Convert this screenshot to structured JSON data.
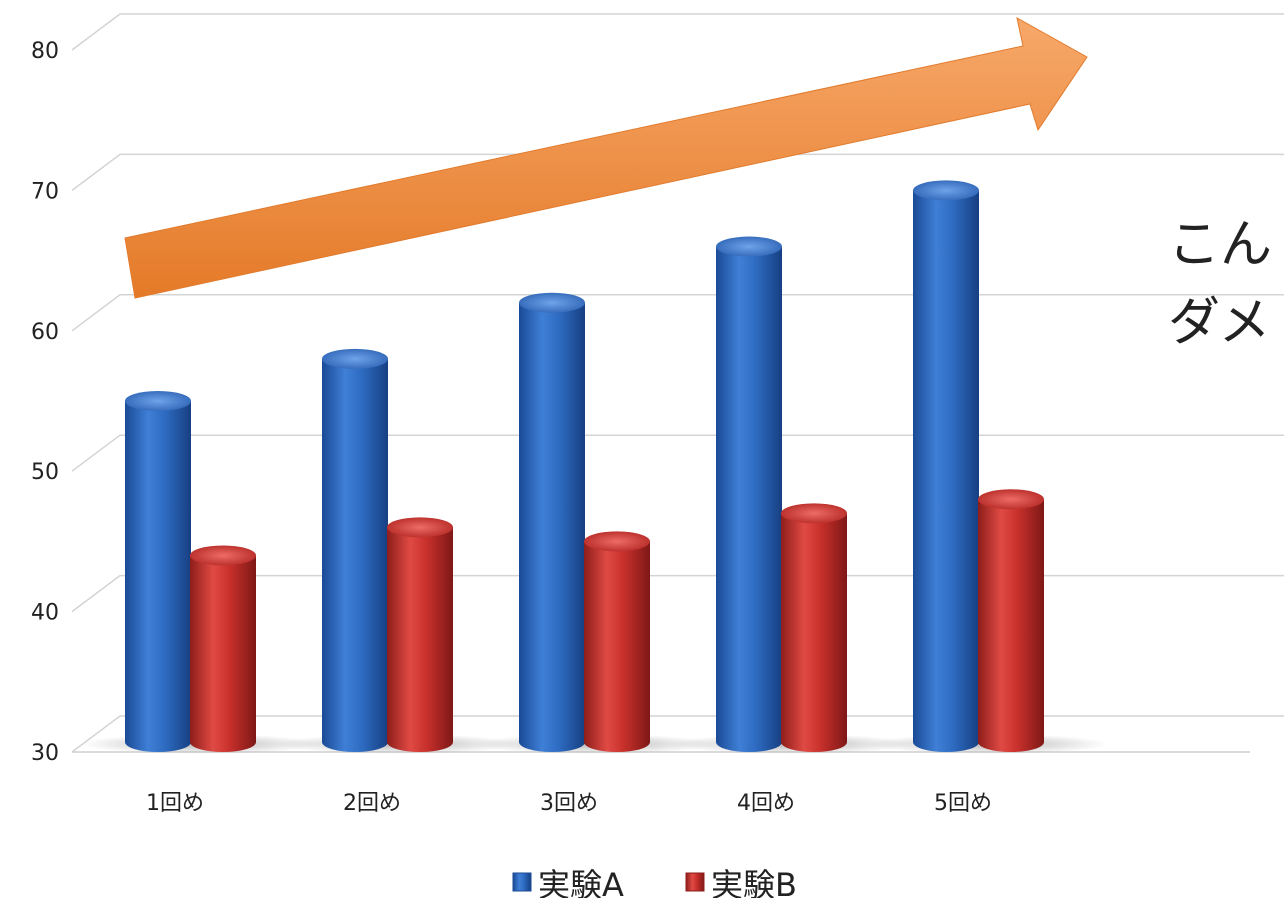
{
  "chart_data": {
    "type": "bar",
    "style": "3d-cylinder",
    "categories": [
      "1回め",
      "2回め",
      "3回め",
      "4回め",
      "5回め"
    ],
    "series": [
      {
        "name": "実験A",
        "color": "#2e6cc2",
        "values": [
          55,
          58,
          62,
          66,
          70
        ]
      },
      {
        "name": "実験B",
        "color": "#c8302c",
        "values": [
          44,
          46,
          45,
          47,
          48
        ]
      }
    ],
    "ylim": [
      30,
      80
    ],
    "yticks": [
      30,
      40,
      50,
      60,
      70,
      80
    ],
    "grid": true,
    "legend_position": "bottom",
    "arrow_color": "#f08a3a",
    "annotation_lines": [
      "こん",
      "ダメ"
    ]
  }
}
